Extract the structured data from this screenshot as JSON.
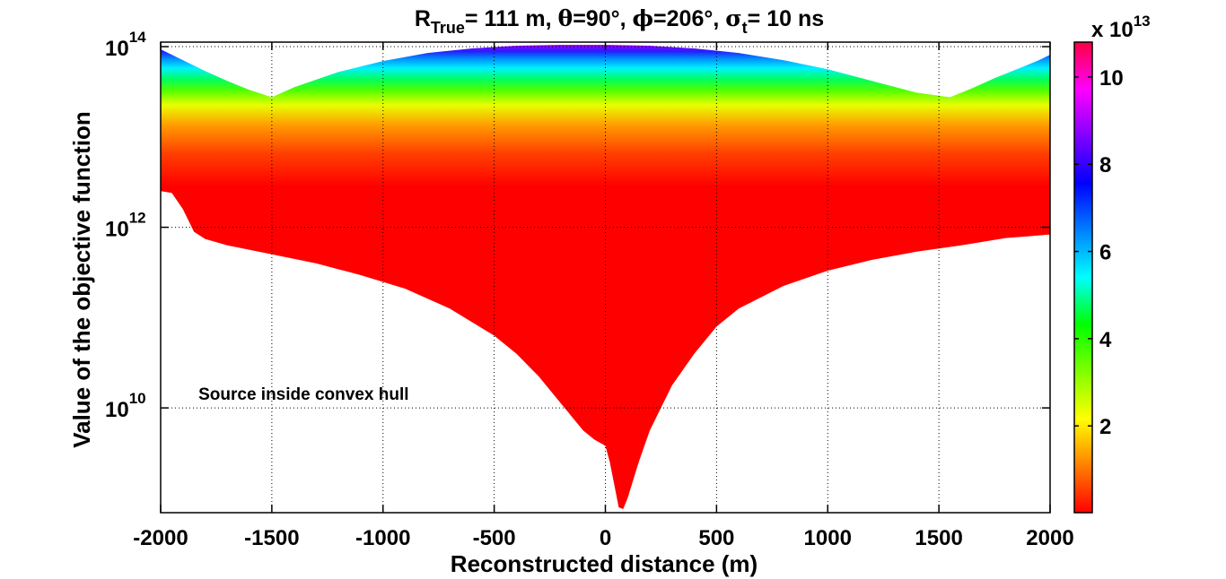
{
  "chart_data": {
    "type": "area",
    "title": {
      "r_symbol": "R",
      "r_subscript": "True",
      "r_rest": "= 111 m, ",
      "theta_symbol": "θ",
      "theta_rest": "=90°, ",
      "phi_symbol": "ϕ",
      "phi_rest": "=206°, ",
      "sigma_symbol": "σ",
      "sigma_subscript": "t",
      "sigma_rest": "= 10 ns"
    },
    "xlabel": "Reconstructed distance (m)",
    "ylabel": "Value of the objective function",
    "xlim": [
      -2000,
      2000
    ],
    "ylim_log10": [
      8.84,
      14.05
    ],
    "x_ticks": [
      -2000,
      -1500,
      -1000,
      -500,
      0,
      500,
      1000,
      1500,
      2000
    ],
    "x_tick_labels": [
      "-2000",
      "-1500",
      "-1000",
      "-500",
      "0",
      "500",
      "1000",
      "1500",
      "2000"
    ],
    "y_ticks_log10": [
      10,
      12,
      14
    ],
    "y_tick_labels": [
      {
        "base": "10",
        "exp": "10"
      },
      {
        "base": "10",
        "exp": "12"
      },
      {
        "base": "10",
        "exp": "14"
      }
    ],
    "grid": "dotted, at x ticks and y ticks",
    "annotation": "Source inside convex hull",
    "upper_boundary": {
      "x": [
        -2000,
        -1900,
        -1800,
        -1700,
        -1600,
        -1500,
        -1400,
        -1200,
        -1000,
        -800,
        -600,
        -400,
        -200,
        0,
        200,
        400,
        600,
        800,
        1000,
        1200,
        1400,
        1550,
        1650,
        1750,
        1850,
        1950,
        2000
      ],
      "log10_y": [
        13.97,
        13.85,
        13.73,
        13.62,
        13.52,
        13.44,
        13.55,
        13.72,
        13.84,
        13.93,
        13.98,
        14.01,
        14.02,
        14.02,
        14.01,
        13.98,
        13.93,
        13.85,
        13.75,
        13.62,
        13.49,
        13.44,
        13.54,
        13.65,
        13.75,
        13.85,
        13.91
      ]
    },
    "lower_boundary": {
      "x": [
        -2000,
        -1950,
        -1900,
        -1850,
        -1800,
        -1700,
        -1500,
        -1300,
        -1100,
        -900,
        -700,
        -500,
        -400,
        -300,
        -200,
        -100,
        -50,
        0,
        20,
        40,
        60,
        80,
        100,
        150,
        200,
        300,
        400,
        500,
        600,
        800,
        1000,
        1200,
        1400,
        1600,
        1800,
        2000
      ],
      "log10_y": [
        12.4,
        12.38,
        12.2,
        11.95,
        11.87,
        11.8,
        11.7,
        11.6,
        11.47,
        11.32,
        11.1,
        10.8,
        10.6,
        10.35,
        10.05,
        9.75,
        9.65,
        9.58,
        9.4,
        9.15,
        8.9,
        8.88,
        9.0,
        9.4,
        9.75,
        10.25,
        10.6,
        10.9,
        11.1,
        11.35,
        11.52,
        11.64,
        11.73,
        11.8,
        11.88,
        11.92
      ]
    },
    "colorbar": {
      "exponent_label_base": "x 10",
      "exponent_label_exp": "13",
      "min": 0.01,
      "max": 10.8,
      "ticks": [
        2,
        4,
        6,
        8,
        10
      ],
      "tick_labels": [
        "2",
        "4",
        "6",
        "8",
        "10"
      ],
      "colormap_stops": [
        "#ff0000",
        "#ff8000",
        "#ffff00",
        "#80ff00",
        "#00ff00",
        "#00ffff",
        "#0080ff",
        "#0000ff",
        "#8000ff",
        "#ff00ff",
        "#ff0040"
      ]
    }
  }
}
